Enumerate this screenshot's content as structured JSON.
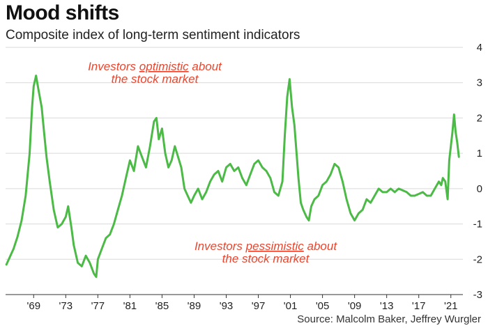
{
  "title": "Mood shifts",
  "subtitle": "Composite index of long-term sentiment indicators",
  "source": "Source: Malcolm Baker, Jeffrey Wurgler",
  "colors": {
    "line": "#4cba46",
    "annotation": "#e8462f",
    "grid": "#d9d9d9",
    "axis": "#333333"
  },
  "annotations": {
    "top": {
      "line1_pre": "Investors ",
      "line1_em": "optimistic",
      "line1_post": " about",
      "line2": "the stock market"
    },
    "bottom": {
      "line1_pre": "Investors ",
      "line1_em": "pessimistic",
      "line1_post": " about",
      "line2": "the stock market"
    }
  },
  "chart_data": {
    "type": "line",
    "title": "Mood shifts",
    "subtitle": "Composite index of long-term sentiment indicators",
    "xlim": [
      1965.5,
      2022.5
    ],
    "ylim": [
      -3,
      4
    ],
    "x_ticks": [
      1969,
      1973,
      1977,
      1981,
      1985,
      1989,
      1993,
      1997,
      2001,
      2005,
      2009,
      2013,
      2017,
      2021
    ],
    "x_tick_labels": [
      "'69",
      "'73",
      "'77",
      "'81",
      "'85",
      "'89",
      "'93",
      "'97",
      "'01",
      "'05",
      "'09",
      "'13",
      "'17",
      "'21"
    ],
    "y_ticks": [
      -3,
      -2,
      -1,
      0,
      1,
      2,
      3,
      4
    ],
    "y_tick_labels": [
      "-3",
      "-2",
      "-1",
      "0",
      "1",
      "2",
      "3",
      "4"
    ],
    "grid": "horizontal",
    "series": [
      {
        "points": [
          [
            1965.6,
            -2.15
          ],
          [
            1966.0,
            -1.95
          ],
          [
            1966.5,
            -1.7
          ],
          [
            1967.0,
            -1.35
          ],
          [
            1967.5,
            -0.9
          ],
          [
            1968.0,
            -0.2
          ],
          [
            1968.5,
            1.0
          ],
          [
            1968.8,
            2.3
          ],
          [
            1969.0,
            2.9
          ],
          [
            1969.3,
            3.2
          ],
          [
            1969.6,
            2.8
          ],
          [
            1970.0,
            2.3
          ],
          [
            1970.3,
            1.6
          ],
          [
            1970.6,
            0.9
          ],
          [
            1971.0,
            0.2
          ],
          [
            1971.5,
            -0.6
          ],
          [
            1972.0,
            -1.1
          ],
          [
            1972.5,
            -1.0
          ],
          [
            1973.0,
            -0.8
          ],
          [
            1973.3,
            -0.5
          ],
          [
            1973.7,
            -1.1
          ],
          [
            1974.0,
            -1.6
          ],
          [
            1974.5,
            -2.1
          ],
          [
            1975.0,
            -2.2
          ],
          [
            1975.5,
            -1.9
          ],
          [
            1976.0,
            -2.1
          ],
          [
            1976.5,
            -2.4
          ],
          [
            1976.8,
            -2.5
          ],
          [
            1977.0,
            -2.0
          ],
          [
            1977.5,
            -1.7
          ],
          [
            1978.0,
            -1.4
          ],
          [
            1978.5,
            -1.3
          ],
          [
            1979.0,
            -1.0
          ],
          [
            1979.5,
            -0.6
          ],
          [
            1980.0,
            -0.2
          ],
          [
            1980.5,
            0.3
          ],
          [
            1981.0,
            0.8
          ],
          [
            1981.5,
            0.5
          ],
          [
            1982.0,
            1.2
          ],
          [
            1982.5,
            0.9
          ],
          [
            1983.0,
            0.6
          ],
          [
            1983.5,
            1.2
          ],
          [
            1984.0,
            1.9
          ],
          [
            1984.3,
            2.0
          ],
          [
            1984.6,
            1.4
          ],
          [
            1985.0,
            1.7
          ],
          [
            1985.4,
            1.0
          ],
          [
            1985.8,
            0.6
          ],
          [
            1986.2,
            0.8
          ],
          [
            1986.6,
            1.2
          ],
          [
            1987.0,
            0.9
          ],
          [
            1987.4,
            0.6
          ],
          [
            1987.8,
            0.0
          ],
          [
            1988.2,
            -0.2
          ],
          [
            1988.6,
            -0.4
          ],
          [
            1989.0,
            -0.2
          ],
          [
            1989.5,
            0.0
          ],
          [
            1990.0,
            -0.3
          ],
          [
            1990.5,
            -0.1
          ],
          [
            1991.0,
            0.2
          ],
          [
            1991.5,
            0.4
          ],
          [
            1992.0,
            0.5
          ],
          [
            1992.5,
            0.2
          ],
          [
            1993.0,
            0.6
          ],
          [
            1993.5,
            0.7
          ],
          [
            1994.0,
            0.5
          ],
          [
            1994.5,
            0.6
          ],
          [
            1995.0,
            0.3
          ],
          [
            1995.5,
            0.1
          ],
          [
            1996.0,
            0.4
          ],
          [
            1996.5,
            0.7
          ],
          [
            1997.0,
            0.8
          ],
          [
            1997.5,
            0.6
          ],
          [
            1998.0,
            0.5
          ],
          [
            1998.5,
            0.3
          ],
          [
            1999.0,
            -0.1
          ],
          [
            1999.5,
            -0.2
          ],
          [
            2000.0,
            0.2
          ],
          [
            2000.3,
            1.5
          ],
          [
            2000.6,
            2.6
          ],
          [
            2000.9,
            3.1
          ],
          [
            2001.2,
            2.3
          ],
          [
            2001.5,
            1.8
          ],
          [
            2001.8,
            0.9
          ],
          [
            2002.0,
            0.3
          ],
          [
            2002.3,
            -0.4
          ],
          [
            2002.6,
            -0.6
          ],
          [
            2003.0,
            -0.8
          ],
          [
            2003.3,
            -0.9
          ],
          [
            2003.6,
            -0.5
          ],
          [
            2004.0,
            -0.3
          ],
          [
            2004.5,
            -0.2
          ],
          [
            2005.0,
            0.1
          ],
          [
            2005.5,
            0.2
          ],
          [
            2006.0,
            0.4
          ],
          [
            2006.5,
            0.7
          ],
          [
            2007.0,
            0.6
          ],
          [
            2007.5,
            0.2
          ],
          [
            2008.0,
            -0.3
          ],
          [
            2008.5,
            -0.7
          ],
          [
            2009.0,
            -0.9
          ],
          [
            2009.5,
            -0.7
          ],
          [
            2010.0,
            -0.6
          ],
          [
            2010.5,
            -0.3
          ],
          [
            2011.0,
            -0.4
          ],
          [
            2011.5,
            -0.2
          ],
          [
            2012.0,
            0.0
          ],
          [
            2012.5,
            -0.1
          ],
          [
            2013.0,
            -0.1
          ],
          [
            2013.5,
            0.0
          ],
          [
            2014.0,
            -0.1
          ],
          [
            2014.5,
            0.0
          ],
          [
            2015.0,
            -0.05
          ],
          [
            2015.5,
            -0.1
          ],
          [
            2016.0,
            -0.2
          ],
          [
            2016.5,
            -0.2
          ],
          [
            2017.0,
            -0.15
          ],
          [
            2017.5,
            -0.1
          ],
          [
            2018.0,
            -0.2
          ],
          [
            2018.5,
            -0.2
          ],
          [
            2019.0,
            0.0
          ],
          [
            2019.5,
            0.2
          ],
          [
            2019.8,
            0.1
          ],
          [
            2020.0,
            0.3
          ],
          [
            2020.3,
            0.2
          ],
          [
            2020.6,
            -0.3
          ],
          [
            2020.8,
            0.8
          ],
          [
            2021.0,
            1.2
          ],
          [
            2021.2,
            1.6
          ],
          [
            2021.4,
            2.1
          ],
          [
            2021.6,
            1.6
          ],
          [
            2021.8,
            1.3
          ],
          [
            2022.0,
            0.9
          ]
        ]
      }
    ]
  }
}
